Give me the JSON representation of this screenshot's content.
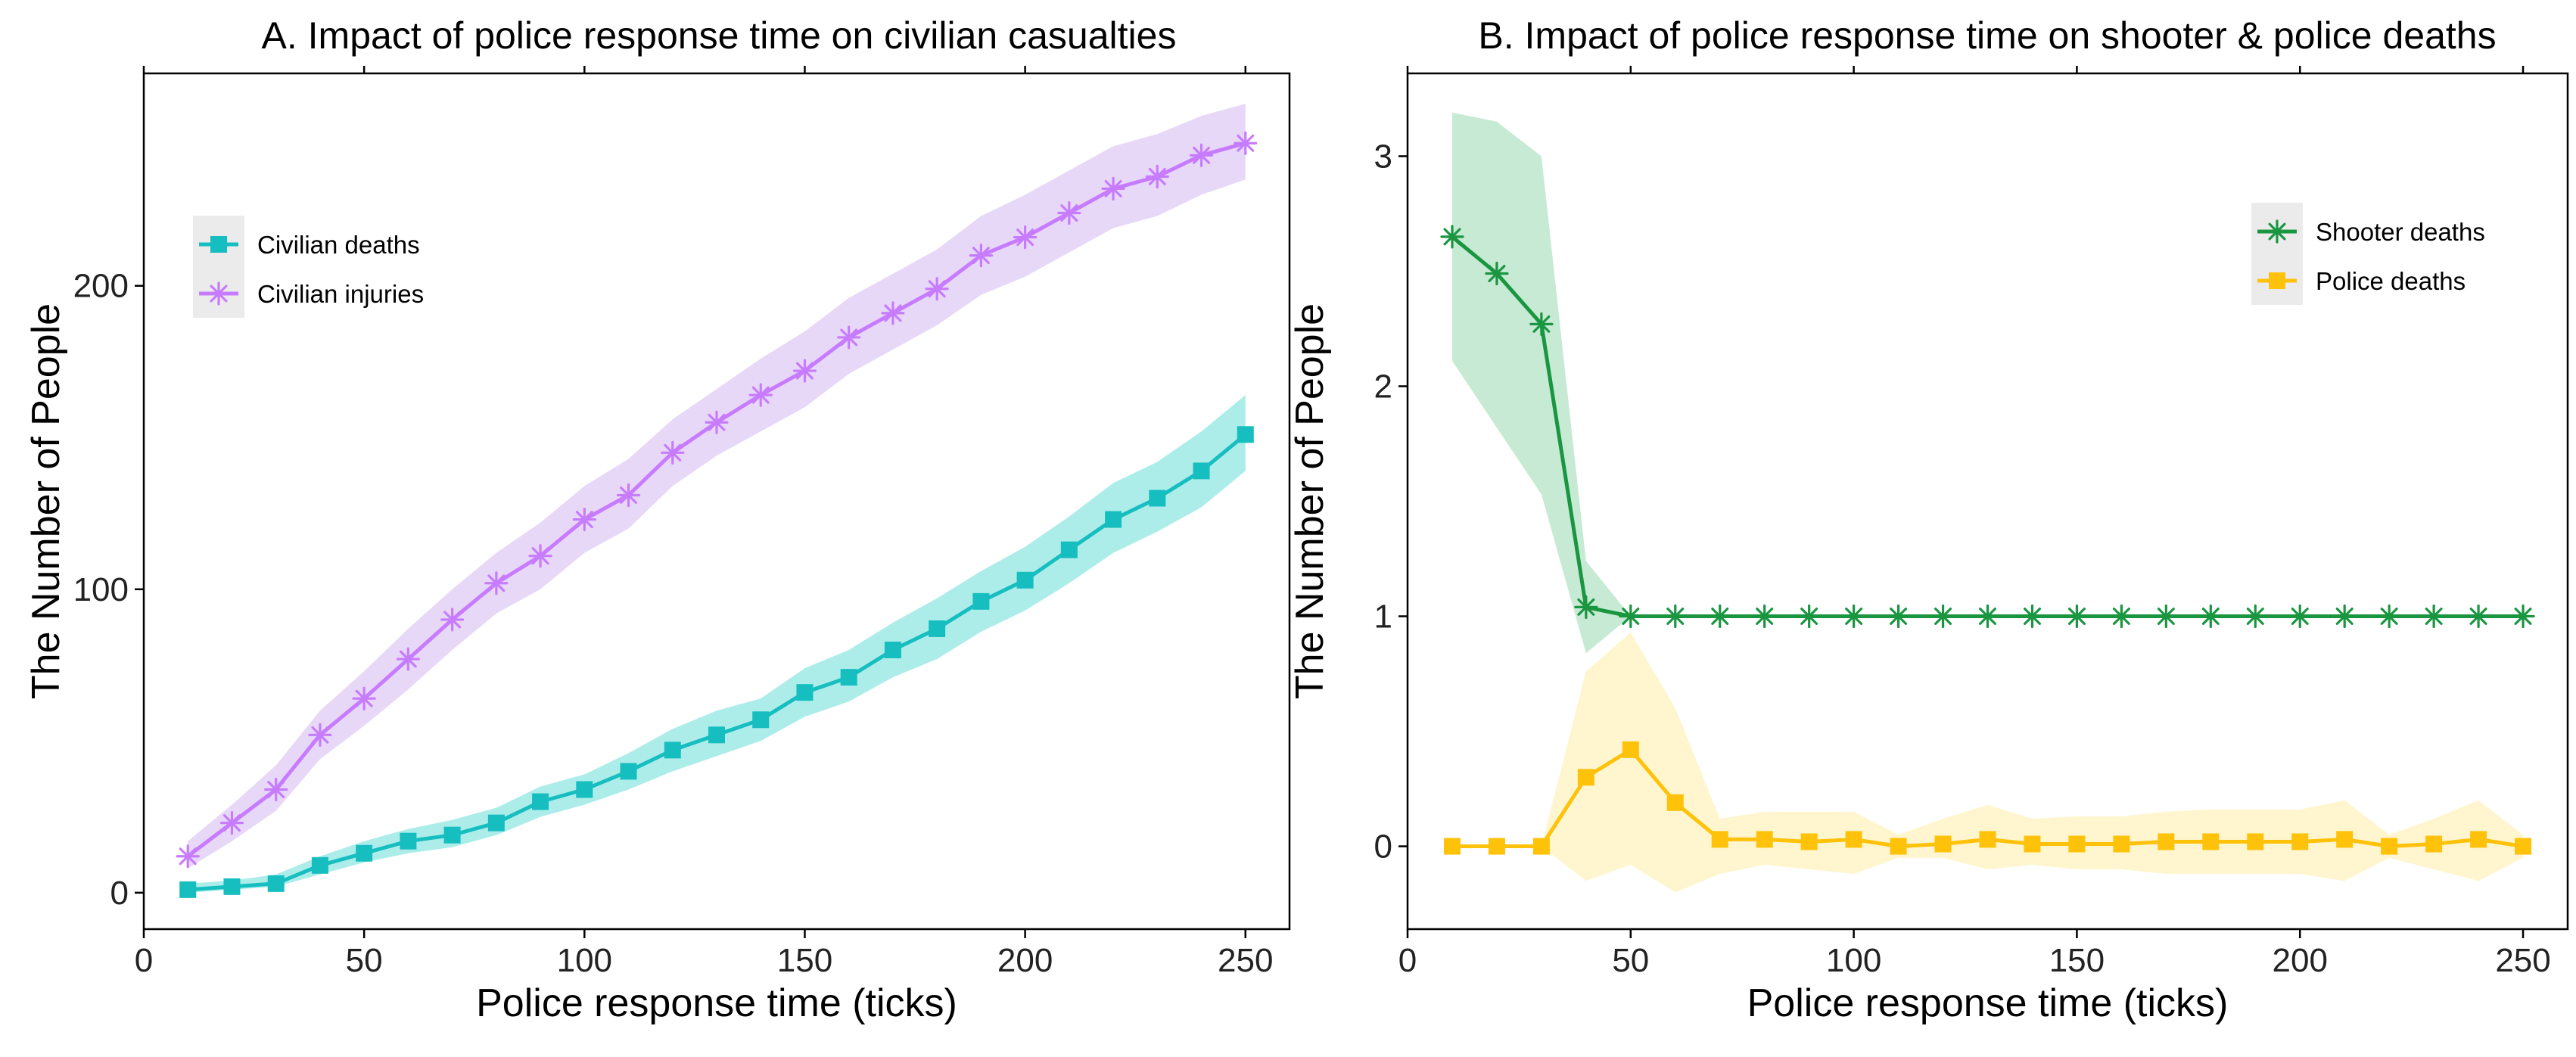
{
  "chart_data": [
    {
      "type": "line",
      "title": "A. Impact of police response time on civilian casualties",
      "xlabel": "Police response time (ticks)",
      "ylabel": "The Number of  People",
      "xlim": [
        0,
        260
      ],
      "ylim": [
        -12,
        270
      ],
      "xticks": [
        0,
        50,
        100,
        150,
        200,
        250
      ],
      "xtick_labels": [
        "0",
        "50",
        "100",
        "150",
        "200",
        "250"
      ],
      "yticks": [
        0,
        100,
        200
      ],
      "ytick_labels": [
        "0",
        "100",
        "200"
      ],
      "grid": false,
      "legend_position": "top-left",
      "x": [
        10,
        20,
        30,
        40,
        50,
        60,
        70,
        80,
        90,
        100,
        110,
        120,
        130,
        140,
        150,
        160,
        170,
        180,
        190,
        200,
        210,
        220,
        230,
        240,
        250
      ],
      "series": [
        {
          "name": "Civilian deaths",
          "color": "#17BEC0",
          "band_color": "#7FE3DF",
          "marker": "square",
          "values": [
            1,
            2,
            3,
            9,
            13,
            17,
            19,
            23,
            30,
            34,
            40,
            47,
            52,
            57,
            66,
            71,
            80,
            87,
            96,
            103,
            113,
            123,
            130,
            139,
            151
          ],
          "lower": [
            0,
            1,
            2,
            6,
            10,
            13,
            15,
            19,
            25,
            29,
            34,
            40,
            45,
            50,
            58,
            63,
            71,
            77,
            86,
            93,
            102,
            112,
            119,
            127,
            139
          ],
          "upper": [
            3,
            4,
            6,
            12,
            17,
            21,
            24,
            28,
            35,
            39,
            46,
            54,
            60,
            64,
            74,
            80,
            89,
            97,
            106,
            114,
            124,
            135,
            142,
            152,
            164
          ]
        },
        {
          "name": "Civilian injuries",
          "color": "#C77CFF",
          "band_color": "#DCC3F5",
          "marker": "asterisk",
          "values": [
            12,
            23,
            34,
            52,
            64,
            77,
            90,
            102,
            111,
            123,
            131,
            145,
            155,
            164,
            172,
            183,
            191,
            199,
            210,
            216,
            224,
            232,
            236,
            243,
            247
          ],
          "lower": [
            8,
            17,
            27,
            44,
            55,
            67,
            80,
            92,
            100,
            112,
            120,
            134,
            144,
            152,
            160,
            171,
            179,
            187,
            197,
            203,
            211,
            219,
            223,
            230,
            235
          ],
          "upper": [
            17,
            29,
            42,
            60,
            73,
            87,
            100,
            112,
            122,
            134,
            143,
            156,
            166,
            176,
            185,
            196,
            204,
            212,
            223,
            230,
            238,
            246,
            250,
            256,
            260
          ]
        }
      ]
    },
    {
      "type": "line",
      "title": "B. Impact of police response time on shooter & police deaths",
      "xlabel": "Police response time (ticks)",
      "ylabel": "The Number of People",
      "xlim": [
        0,
        260
      ],
      "ylim": [
        -0.36,
        3.36
      ],
      "xticks": [
        0,
        50,
        100,
        150,
        200,
        250
      ],
      "xtick_labels": [
        "0",
        "50",
        "100",
        "150",
        "200",
        "250"
      ],
      "yticks": [
        0,
        1,
        2,
        3
      ],
      "ytick_labels": [
        "0",
        "1",
        "2",
        "3"
      ],
      "grid": false,
      "legend_position": "top-right",
      "x": [
        10,
        20,
        30,
        40,
        50,
        60,
        70,
        80,
        90,
        100,
        110,
        120,
        130,
        140,
        150,
        160,
        170,
        180,
        190,
        200,
        210,
        220,
        230,
        240,
        250
      ],
      "series": [
        {
          "name": "Shooter deaths",
          "color": "#1A9641",
          "band_color": "#A9DFBF",
          "marker": "asterisk",
          "values": [
            2.65,
            2.49,
            2.27,
            1.04,
            1.0,
            1.0,
            1.0,
            1.0,
            1.0,
            1.0,
            1.0,
            1.0,
            1.0,
            1.0,
            1.0,
            1.0,
            1.0,
            1.0,
            1.0,
            1.0,
            1.0,
            1.0,
            1.0,
            1.0,
            1.0
          ],
          "lower": [
            2.11,
            1.82,
            1.53,
            0.84,
            1.0,
            1.0,
            1.0,
            1.0,
            1.0,
            1.0,
            1.0,
            1.0,
            1.0,
            1.0,
            1.0,
            1.0,
            1.0,
            1.0,
            1.0,
            1.0,
            1.0,
            1.0,
            1.0,
            1.0,
            1.0
          ],
          "upper": [
            3.19,
            3.15,
            3.0,
            1.24,
            1.0,
            1.0,
            1.0,
            1.0,
            1.0,
            1.0,
            1.0,
            1.0,
            1.0,
            1.0,
            1.0,
            1.0,
            1.0,
            1.0,
            1.0,
            1.0,
            1.0,
            1.0,
            1.0,
            1.0,
            1.0
          ]
        },
        {
          "name": "Police deaths",
          "color": "#FFC20A",
          "band_color": "#FFF0B3",
          "marker": "square",
          "values": [
            0,
            0,
            0,
            0.3,
            0.42,
            0.19,
            0.03,
            0.03,
            0.02,
            0.03,
            0.0,
            0.01,
            0.03,
            0.01,
            0.01,
            0.01,
            0.02,
            0.02,
            0.02,
            0.02,
            0.03,
            0.0,
            0.01,
            0.03,
            0.0
          ],
          "lower": [
            0,
            0,
            0,
            -0.15,
            -0.08,
            -0.2,
            -0.12,
            -0.08,
            -0.1,
            -0.12,
            -0.05,
            -0.05,
            -0.1,
            -0.08,
            -0.1,
            -0.1,
            -0.12,
            -0.12,
            -0.12,
            -0.12,
            -0.15,
            -0.05,
            -0.1,
            -0.15,
            -0.05
          ],
          "upper": [
            0,
            0,
            0,
            0.76,
            0.93,
            0.6,
            0.12,
            0.15,
            0.15,
            0.15,
            0.05,
            0.12,
            0.18,
            0.12,
            0.13,
            0.13,
            0.15,
            0.16,
            0.16,
            0.16,
            0.2,
            0.05,
            0.12,
            0.2,
            0.05
          ]
        }
      ]
    }
  ]
}
